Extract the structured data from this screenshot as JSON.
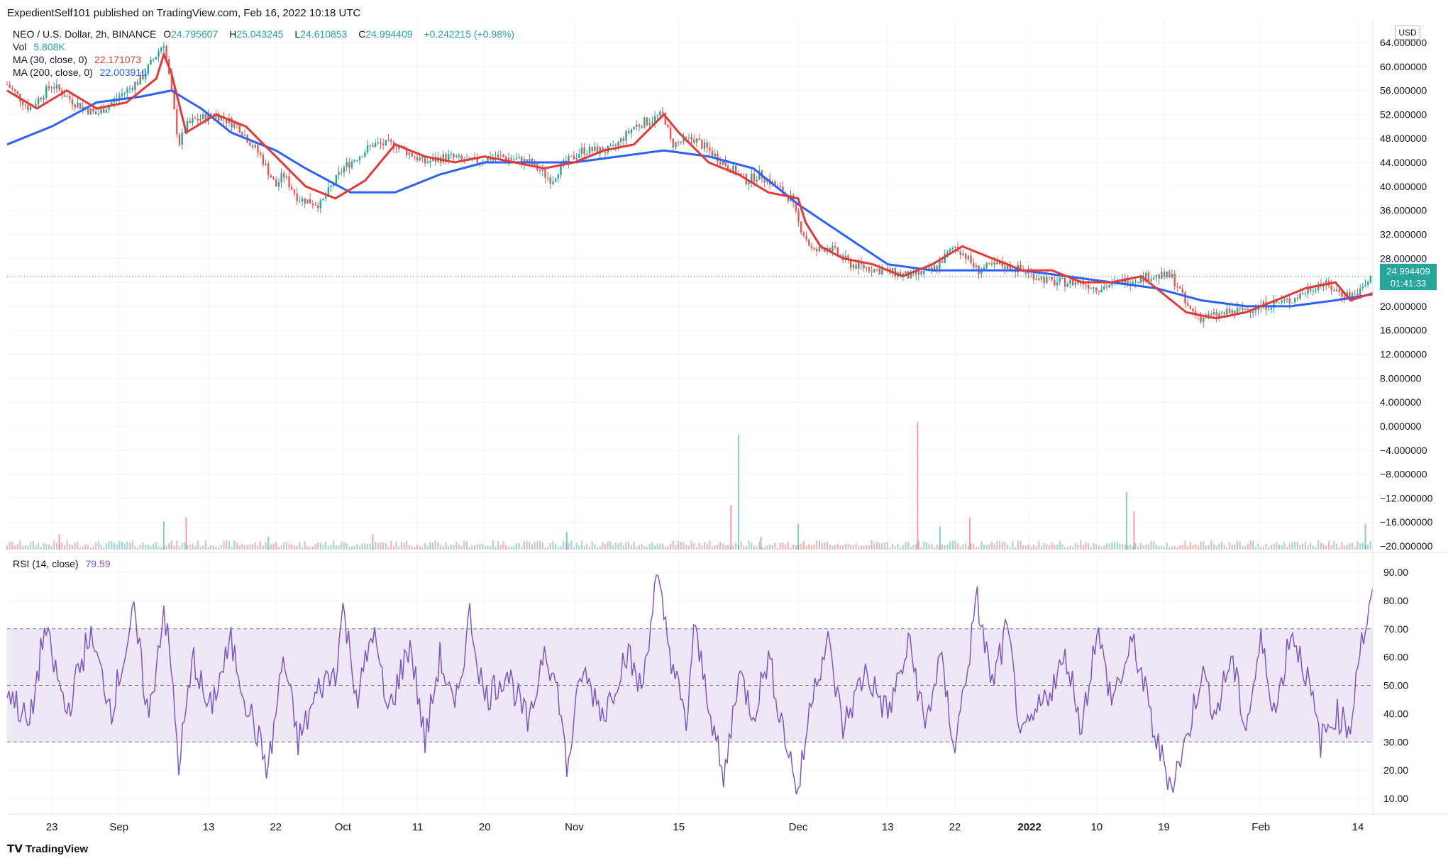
{
  "header": {
    "published": "ExpedientSelf101 published on TradingView.com, Feb 16, 2022 10:18 UTC"
  },
  "legend": {
    "symbol": "NEO / U.S. Dollar, 2h, BINANCE",
    "open_label": "O",
    "open": "24.795607",
    "high_label": "H",
    "high": "25.043245",
    "low_label": "L",
    "low": "24.610853",
    "close_label": "C",
    "close": "24.994409",
    "change": "+0.242215 (+0.98%)",
    "vol_label": "Vol",
    "vol": "5.808K",
    "ma30_label": "MA (30, close, 0)",
    "ma30": "22.171073",
    "ma200_label": "MA (200, close, 0)",
    "ma200": "22.003916",
    "rsi_label": "RSI (14, close)",
    "rsi": "79.59"
  },
  "price_tag": {
    "price": "24.994409",
    "countdown": "01:41:33"
  },
  "currency": "USD",
  "brand": "TradingView",
  "colors": {
    "up": "#26a69a",
    "down": "#ef5350",
    "ma30": "#e53935",
    "ma200": "#2962ff",
    "rsi": "#7e57c2",
    "rsi_band": "#ede7f6",
    "grid": "#f0f3fa",
    "axis_text": "#131722"
  },
  "chart_data": [
    {
      "type": "candlestick",
      "title": "NEO / U.S. Dollar, 2h, BINANCE",
      "y_tick_labels": [
        "64.000000",
        "60.000000",
        "56.000000",
        "52.000000",
        "48.000000",
        "44.000000",
        "40.000000",
        "36.000000",
        "32.000000",
        "28.000000",
        "24.000000",
        "20.000000",
        "16.000000",
        "12.000000",
        "8.000000",
        "4.000000",
        "0.000000",
        "−4.000000",
        "−8.000000",
        "−12.000000",
        "−16.000000",
        "−20.000000"
      ],
      "y_tick_values": [
        64,
        60,
        56,
        52,
        48,
        44,
        40,
        36,
        32,
        28,
        24,
        20,
        16,
        12,
        8,
        4,
        0,
        -4,
        -8,
        -12,
        -16,
        -20
      ],
      "ylim": [
        -20,
        66
      ],
      "x_tick_labels": [
        "23",
        "Sep",
        "13",
        "22",
        "Oct",
        "11",
        "20",
        "Nov",
        "15",
        "Dec",
        "13",
        "22",
        "2022",
        "10",
        "19",
        "Feb",
        "14"
      ],
      "x_tick_days": [
        22,
        31,
        43,
        52,
        61,
        71,
        80,
        92,
        106,
        122,
        134,
        143,
        153,
        162,
        171,
        184,
        197
      ],
      "x_range_days": [
        16,
        199
      ],
      "series": [
        {
          "name": "Price",
          "days": [
            16,
            19,
            22,
            25,
            28,
            31,
            34,
            37,
            38,
            39,
            40,
            41,
            44,
            47,
            50,
            52,
            53,
            55,
            58,
            61,
            65,
            68,
            72,
            75,
            78,
            82,
            86,
            89,
            90,
            93,
            97,
            100,
            104,
            105,
            108,
            112,
            115,
            117,
            120,
            121,
            122,
            124,
            126,
            129,
            133,
            137,
            140,
            143,
            144,
            146,
            149,
            152,
            156,
            160,
            162,
            165,
            169,
            172,
            173,
            174,
            176,
            180,
            184,
            188,
            192,
            195,
            197,
            199
          ],
          "values": [
            57,
            53,
            57,
            54,
            52,
            55,
            58,
            64,
            56,
            47,
            50,
            51,
            52,
            50,
            45,
            40,
            42,
            38,
            37,
            43,
            47,
            47,
            44,
            45,
            44,
            45,
            44,
            41,
            43,
            46,
            46,
            50,
            52,
            47,
            48,
            44,
            41,
            42,
            39,
            38,
            34,
            29,
            30,
            27,
            26,
            25,
            26,
            30,
            29,
            26,
            27,
            26,
            24,
            24,
            23,
            24,
            25,
            25,
            23,
            20,
            18,
            19,
            20,
            21,
            24,
            22,
            22,
            25
          ]
        },
        {
          "name": "MA (30, close, 0)",
          "days": [
            16,
            20,
            24,
            28,
            32,
            36,
            37,
            38,
            40,
            44,
            48,
            52,
            56,
            60,
            64,
            68,
            72,
            76,
            80,
            84,
            88,
            92,
            96,
            100,
            104,
            106,
            110,
            114,
            118,
            122,
            123,
            125,
            128,
            132,
            136,
            140,
            144,
            148,
            152,
            156,
            160,
            164,
            168,
            170,
            174,
            178,
            182,
            186,
            190,
            194,
            196,
            199
          ],
          "values": [
            56,
            53,
            56,
            53,
            54,
            58,
            62,
            59,
            49,
            52,
            50,
            45,
            40,
            38,
            41,
            47,
            45,
            44,
            45,
            44,
            43,
            44,
            46,
            47,
            52,
            49,
            44,
            42,
            39,
            38,
            34,
            30,
            28,
            27,
            25,
            27,
            30,
            28,
            26,
            26,
            24,
            24,
            25,
            23,
            19,
            18,
            19,
            21,
            23,
            24,
            21,
            22.2
          ]
        },
        {
          "name": "MA (200, close, 0)",
          "days": [
            16,
            22,
            28,
            34,
            38,
            42,
            46,
            52,
            56,
            62,
            68,
            74,
            80,
            86,
            92,
            98,
            104,
            110,
            116,
            122,
            128,
            134,
            140,
            146,
            152,
            158,
            164,
            170,
            176,
            182,
            188,
            194,
            199
          ],
          "values": [
            47,
            50,
            54,
            55,
            56,
            53,
            49,
            46,
            43,
            39,
            39,
            42,
            44,
            44,
            44,
            45,
            46,
            45,
            43,
            37,
            32,
            27,
            26,
            26,
            26,
            25,
            24,
            23,
            21,
            20,
            20,
            21,
            22
          ]
        }
      ]
    },
    {
      "type": "bar",
      "title": "Vol",
      "x_range_days": [
        16,
        199
      ],
      "series": [
        {
          "name": "Vol",
          "days": [
            23,
            37,
            40,
            51,
            65,
            91,
            113,
            114,
            117,
            122,
            138,
            141,
            145,
            166,
            167,
            198
          ],
          "values": [
            0.12,
            0.22,
            0.25,
            0.1,
            0.12,
            0.14,
            0.35,
            0.9,
            0.1,
            0.2,
            1.0,
            0.18,
            0.25,
            0.45,
            0.3,
            0.2
          ]
        }
      ]
    },
    {
      "type": "line",
      "title": "RSI (14, close)",
      "y_tick_labels": [
        "90.00",
        "80.00",
        "70.00",
        "60.00",
        "50.00",
        "40.00",
        "30.00",
        "20.00",
        "10.00"
      ],
      "y_tick_values": [
        90,
        80,
        70,
        60,
        50,
        40,
        30,
        20,
        10
      ],
      "ylim": [
        4,
        95
      ],
      "bands": {
        "upper": 70,
        "middle": 50,
        "lower": 30
      },
      "x_range_days": [
        16,
        199
      ],
      "series": [
        {
          "name": "RSI (14, close)",
          "days": [
            16,
            19,
            21,
            24,
            27,
            30,
            33,
            35,
            37,
            38,
            39,
            41,
            43,
            46,
            48,
            51,
            53,
            55,
            58,
            60,
            61,
            63,
            65,
            67,
            70,
            72,
            74,
            76,
            78,
            80,
            83,
            86,
            88,
            90,
            91,
            93,
            96,
            99,
            101,
            103,
            105,
            107,
            108,
            110,
            112,
            114,
            116,
            118,
            120,
            122,
            124,
            126,
            128,
            131,
            134,
            137,
            139,
            141,
            143,
            146,
            148,
            150,
            152,
            155,
            158,
            160,
            162,
            164,
            167,
            170,
            172,
            174,
            176,
            178,
            180,
            182,
            184,
            186,
            188,
            190,
            192,
            194,
            196,
            197,
            198,
            199
          ],
          "values": [
            50,
            35,
            70,
            40,
            68,
            42,
            75,
            38,
            78,
            55,
            22,
            60,
            40,
            65,
            45,
            20,
            60,
            30,
            50,
            55,
            77,
            45,
            70,
            40,
            65,
            30,
            60,
            40,
            75,
            45,
            55,
            35,
            65,
            45,
            20,
            55,
            40,
            62,
            48,
            88,
            60,
            35,
            70,
            45,
            15,
            55,
            40,
            60,
            35,
            12,
            50,
            65,
            35,
            55,
            40,
            65,
            35,
            60,
            28,
            80,
            50,
            70,
            30,
            45,
            60,
            35,
            70,
            45,
            65,
            30,
            15,
            30,
            55,
            40,
            60,
            35,
            65,
            40,
            70,
            55,
            30,
            40,
            35,
            60,
            70,
            80
          ]
        }
      ]
    }
  ]
}
